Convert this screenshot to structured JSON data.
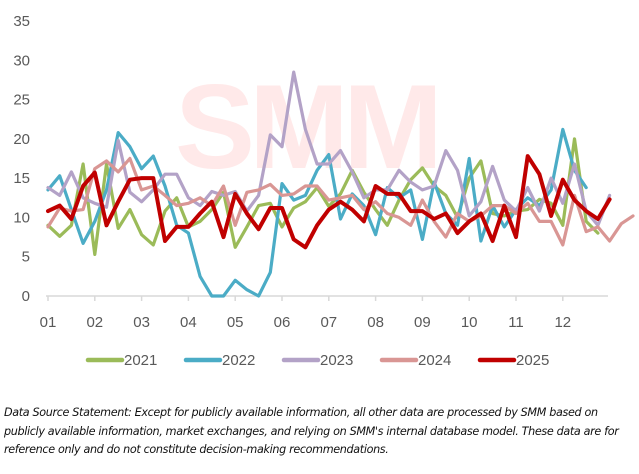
{
  "chart_data": {
    "type": "line",
    "title": "",
    "xlabel": "",
    "ylabel": "",
    "ylim": [
      0,
      35
    ],
    "yticks": [
      "0",
      "5",
      "10",
      "15",
      "20",
      "25",
      "30",
      "35"
    ],
    "xlim": [
      1,
      13
    ],
    "x_ticks": [
      "01",
      "02",
      "03",
      "04",
      "05",
      "06",
      "07",
      "08",
      "09",
      "10",
      "11",
      "12"
    ],
    "grid": false,
    "legend_position": "bottom",
    "watermark": "SMM",
    "series": [
      {
        "name": "2021",
        "color": "#9bbb59",
        "values": [
          9.0,
          7.6,
          9.0,
          16.8,
          5.3,
          16.8,
          8.6,
          11.0,
          7.8,
          6.5,
          10.8,
          12.5,
          8.8,
          9.5,
          11.0,
          13.2,
          6.2,
          8.8,
          11.5,
          11.8,
          8.8,
          11.2,
          12.0,
          13.8,
          11.4,
          13.0,
          16.0,
          13.2,
          11.0,
          9.0,
          12.2,
          14.8,
          16.3,
          14.0,
          12.8,
          10.0,
          15.0,
          17.2,
          10.5,
          10.2,
          10.8,
          11.0,
          12.3,
          11.8,
          9.0,
          20.0,
          9.5,
          8.0
        ],
        "start": 1.0
      },
      {
        "name": "2022",
        "color": "#4bacc6",
        "values": [
          13.5,
          15.3,
          11.0,
          6.7,
          9.5,
          13.5,
          20.8,
          19.0,
          16.2,
          17.8,
          14.0,
          9.0,
          8.0,
          2.5,
          0.0,
          0.0,
          2.0,
          0.8,
          0.0,
          3.0,
          14.3,
          12.2,
          12.8,
          16.0,
          18.0,
          9.8,
          13.0,
          11.5,
          7.8,
          13.8,
          12.5,
          13.5,
          7.2,
          14.5,
          10.5,
          9.0,
          17.5,
          7.0,
          11.5,
          8.8,
          11.0,
          12.5,
          11.5,
          13.5,
          21.2,
          16.0,
          13.8
        ],
        "start": 1.0
      },
      {
        "name": "2023",
        "color": "#b3a2c7",
        "values": [
          13.8,
          12.8,
          15.8,
          12.5,
          11.8,
          11.3,
          19.8,
          13.2,
          12.0,
          13.5,
          15.5,
          15.5,
          12.5,
          11.5,
          13.3,
          12.8,
          13.3,
          10.8,
          12.8,
          20.5,
          19.0,
          28.5,
          21.2,
          16.8,
          16.8,
          18.5,
          15.8,
          12.5,
          13.5,
          13.5,
          16.0,
          14.5,
          13.5,
          14.0,
          18.5,
          16.0,
          10.2,
          12.0,
          16.5,
          12.2,
          10.8,
          13.8,
          10.8,
          15.0,
          11.8,
          16.8,
          10.8,
          9.0,
          12.8
        ],
        "start": 1.0
      },
      {
        "name": "2024",
        "color": "#d99694",
        "values": [
          8.8,
          11.2,
          10.8,
          11.0,
          16.2,
          17.2,
          15.8,
          17.5,
          13.5,
          14.0,
          12.8,
          11.5,
          11.8,
          12.5,
          11.5,
          14.0,
          9.0,
          13.2,
          13.5,
          14.2,
          12.8,
          13.0,
          14.0,
          14.0,
          12.2,
          12.5,
          12.8,
          11.0,
          12.0,
          10.5,
          10.0,
          9.0,
          12.2,
          9.5,
          7.5,
          10.5,
          9.5,
          10.2,
          11.5,
          11.5,
          10.5,
          11.8,
          9.5,
          9.5,
          6.5,
          12.8,
          8.2,
          8.8,
          7.0,
          9.2,
          10.2
        ],
        "start": 1.0
      },
      {
        "name": "2025",
        "color": "#c00000",
        "values": [
          10.8,
          11.5,
          9.8,
          14.0,
          15.7,
          9.0,
          12.0,
          14.8,
          15.0,
          15.0,
          7.0,
          8.8,
          8.8,
          10.5,
          12.0,
          7.5,
          13.0,
          10.5,
          8.5,
          11.2,
          11.2,
          7.2,
          6.2,
          9.0,
          11.0,
          12.0,
          11.0,
          9.5,
          14.0,
          13.0,
          13.0,
          10.8,
          10.8,
          9.8,
          10.5,
          8.0,
          9.5,
          10.5,
          7.0,
          11.5,
          7.5,
          17.8,
          15.5,
          10.2,
          14.8,
          12.2,
          10.8,
          9.8,
          12.3
        ],
        "start": 1.0
      }
    ]
  },
  "footer": {
    "text": "Data Source Statement: Except for publicly available information, all other data are processed by SMM based on publicly available information, market exchanges, and relying on SMM's internal database model. These data are for reference only and do not constitute decision-making recommendations."
  }
}
